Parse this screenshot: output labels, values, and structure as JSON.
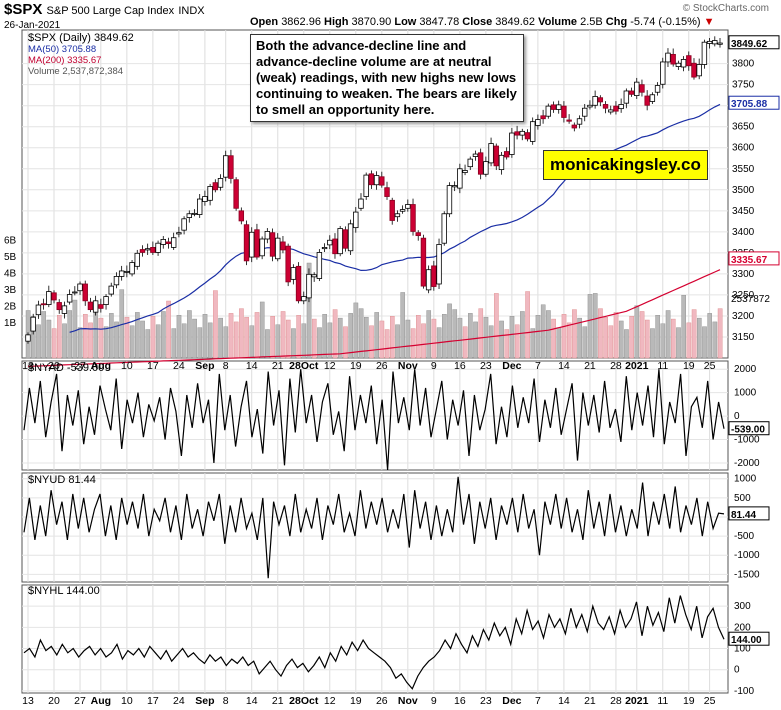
{
  "header": {
    "symbol": "$SPX",
    "name": "S&P 500 Large Cap Index",
    "exchange": "INDX",
    "date": "26-Jan-2021",
    "open_label": "Open",
    "open": "3862.96",
    "high_label": "High",
    "high": "3870.90",
    "low_label": "Low",
    "low": "3847.78",
    "close_label": "Close",
    "close": "3849.62",
    "volume_label": "Volume",
    "volume": "2.5B",
    "chg_label": "Chg",
    "chg": "-5.74 (-0.15%)",
    "chg_arrow": "▼",
    "credit": "© StockCharts.com"
  },
  "legend": {
    "main": "$SPX (Daily) 3849.62",
    "ma50": "MA(50) 3705.88",
    "ma200": "MA(200) 3335.67",
    "volume": "Volume 2,537,872,384"
  },
  "annotation": "Both the advance-decline line and advance-decline volume are at neutral (weak) readings, with new highs new lows continuing to weaken. The bears are likely to smell an opportunity here.",
  "watermark": "monicakingsley.co",
  "panels": {
    "nyad": "$NYAD -539.00",
    "nyud": "$NYUD 81.44",
    "nyhl": "$NYHL 144.00"
  },
  "chart_data": [
    {
      "type": "candlestick",
      "title": "$SPX (Daily)",
      "x_labels": [
        "13",
        "20",
        "27",
        "Aug",
        "10",
        "17",
        "24",
        "Sep",
        "8",
        "14",
        "21",
        "28Oct",
        "12",
        "19",
        "26",
        "Nov",
        "9",
        "16",
        "23",
        "Dec",
        "7",
        "14",
        "21",
        "28",
        "2021",
        "11",
        "19",
        "25"
      ],
      "ylim": [
        3100,
        3880
      ],
      "y_ticks": [
        3150,
        3200,
        3250,
        3300,
        3350,
        3400,
        3450,
        3500,
        3550,
        3600,
        3650,
        3700,
        3750,
        3800
      ],
      "closes": [
        3155,
        3197,
        3226,
        3227,
        3258,
        3238,
        3215,
        3224,
        3251,
        3257,
        3276,
        3236,
        3215,
        3236,
        3218,
        3246,
        3271,
        3294,
        3307,
        3306,
        3327,
        3349,
        3351,
        3360,
        3351,
        3373,
        3382,
        3372,
        3386,
        3398,
        3431,
        3443,
        3444,
        3478,
        3484,
        3508,
        3500,
        3527,
        3581,
        3527,
        3456,
        3426,
        3331,
        3399,
        3340,
        3383,
        3401,
        3342,
        3385,
        3357,
        3281,
        3315,
        3236,
        3246,
        3299,
        3298,
        3351,
        3363,
        3380,
        3348,
        3408,
        3361,
        3419,
        3447,
        3478,
        3535,
        3512,
        3534,
        3511,
        3484,
        3427,
        3443,
        3453,
        3465,
        3401,
        3391,
        3271,
        3310,
        3270,
        3370,
        3443,
        3510,
        3510,
        3550,
        3546,
        3573,
        3585,
        3537,
        3567,
        3610,
        3557,
        3582,
        3578,
        3635,
        3630,
        3639,
        3621,
        3662,
        3667,
        3669,
        3699,
        3691,
        3702,
        3672,
        3663,
        3647,
        3669,
        3694,
        3701,
        3722,
        3709,
        3694,
        3690,
        3687,
        3703,
        3735,
        3727,
        3756,
        3732,
        3701,
        3726,
        3748,
        3804,
        3825,
        3799,
        3801,
        3810,
        3795,
        3768,
        3798,
        3851,
        3853,
        3855,
        3849
      ],
      "last_close": "3849.62",
      "ma50_last": "3705.88",
      "ma200_last": "3335.67",
      "volume_last": "2537872384",
      "volume_label_tick": "2537872",
      "volume_axis": [
        "1B",
        "2B",
        "3B",
        "4B",
        "5B",
        "6B"
      ]
    },
    {
      "type": "line",
      "title": "$NYAD",
      "ylim": [
        -2300,
        2350
      ],
      "y_ticks": [
        -2000,
        -1000,
        0,
        1000,
        2000
      ],
      "last": "-539.00",
      "values": [
        -600,
        1200,
        -300,
        1500,
        -900,
        600,
        1800,
        -1500,
        900,
        -400,
        1100,
        -1200,
        400,
        -800,
        1300,
        300,
        -600,
        1600,
        -1400,
        700,
        -300,
        1000,
        -900,
        500,
        -200,
        800,
        -1000,
        1200,
        200,
        -1700,
        900,
        -500,
        1400,
        -300,
        700,
        -2000,
        1800,
        -600,
        900,
        -1300,
        400,
        1500,
        -900,
        300,
        -1600,
        1900,
        -400,
        1100,
        -2100,
        1600,
        -700,
        2000,
        -300,
        900,
        -1100,
        600,
        1400,
        -800,
        200,
        -1500,
        1700,
        -600,
        900,
        -300,
        1300,
        -1200,
        700,
        -2300,
        1900,
        -300,
        800,
        -600,
        2000,
        -400,
        1200,
        -900,
        300,
        1500,
        -1000,
        700,
        -400,
        1100,
        -1700,
        900,
        -600,
        300,
        1800,
        -1200,
        400,
        -900,
        1300,
        -500,
        800,
        -300,
        1600,
        -1100,
        700,
        -500,
        1200,
        -800,
        300,
        1400,
        -1900,
        1000,
        -400,
        900,
        -700,
        1500,
        -500,
        300,
        -1100,
        1700,
        -600,
        1000,
        -400,
        1300,
        -900,
        2000,
        -1200,
        600,
        -300,
        1800,
        -1700,
        400,
        800,
        -500,
        1500,
        -1000,
        600,
        -539
      ]
    },
    {
      "type": "line",
      "title": "$NYUD",
      "ylim": [
        -1700,
        1150
      ],
      "y_ticks": [
        -1500,
        -1000,
        -500,
        0,
        500,
        1000
      ],
      "last": "81.44",
      "values": [
        -400,
        500,
        -600,
        300,
        -500,
        700,
        -200,
        400,
        -600,
        600,
        -300,
        500,
        -400,
        200,
        600,
        -500,
        300,
        -600,
        500,
        -200,
        400,
        -300,
        600,
        -500,
        200,
        -100,
        500,
        -400,
        300,
        -600,
        600,
        -300,
        200,
        -500,
        400,
        -100,
        600,
        -700,
        300,
        -400,
        500,
        -300,
        100,
        -600,
        500,
        -1600,
        400,
        -200,
        300,
        -500,
        600,
        -400,
        200,
        -300,
        500,
        -600,
        300,
        -200,
        600,
        -400,
        100,
        -500,
        700,
        -300,
        400,
        -200,
        500,
        -400,
        200,
        -300,
        600,
        -800,
        700,
        -300,
        400,
        -600,
        300,
        -500,
        200,
        -400,
        1050,
        -200,
        600,
        -700,
        400,
        -300,
        500,
        -600,
        300,
        -200,
        500,
        -400,
        600,
        -300,
        200,
        -1000,
        400,
        -200,
        600,
        -300,
        500,
        -400,
        200,
        -600,
        700,
        -300,
        400,
        -500,
        600,
        -400,
        300,
        -500,
        200,
        -300,
        900,
        -500,
        400,
        -200,
        600,
        -300,
        800,
        -400,
        300,
        -200,
        500,
        -500,
        400,
        -300,
        100,
        81
      ]
    },
    {
      "type": "line",
      "title": "$NYHL",
      "ylim": [
        -110,
        400
      ],
      "y_ticks": [
        -100,
        0,
        100,
        200,
        300
      ],
      "last": "144.00",
      "values": [
        80,
        100,
        60,
        140,
        90,
        110,
        70,
        120,
        80,
        100,
        60,
        90,
        110,
        70,
        100,
        60,
        80,
        120,
        50,
        90,
        70,
        100,
        60,
        110,
        80,
        50,
        90,
        40,
        70,
        100,
        60,
        80,
        50,
        30,
        70,
        40,
        60,
        20,
        50,
        30,
        60,
        20,
        40,
        -20,
        10,
        40,
        0,
        -30,
        20,
        50,
        10,
        30,
        -10,
        20,
        60,
        10,
        80,
        40,
        110,
        70,
        130,
        90,
        140,
        100,
        80,
        60,
        40,
        10,
        -40,
        -20,
        -60,
        -90,
        -30,
        10,
        40,
        60,
        90,
        140,
        100,
        170,
        120,
        80,
        160,
        110,
        190,
        140,
        220,
        160,
        200,
        120,
        240,
        170,
        280,
        190,
        230,
        150,
        260,
        200,
        240,
        170,
        290,
        200,
        260,
        180,
        300,
        220,
        190,
        250,
        170,
        280,
        200,
        240,
        320,
        160,
        300,
        210,
        270,
        180,
        340,
        220,
        350,
        260,
        190,
        300,
        150,
        250,
        290,
        200,
        144
      ]
    }
  ]
}
